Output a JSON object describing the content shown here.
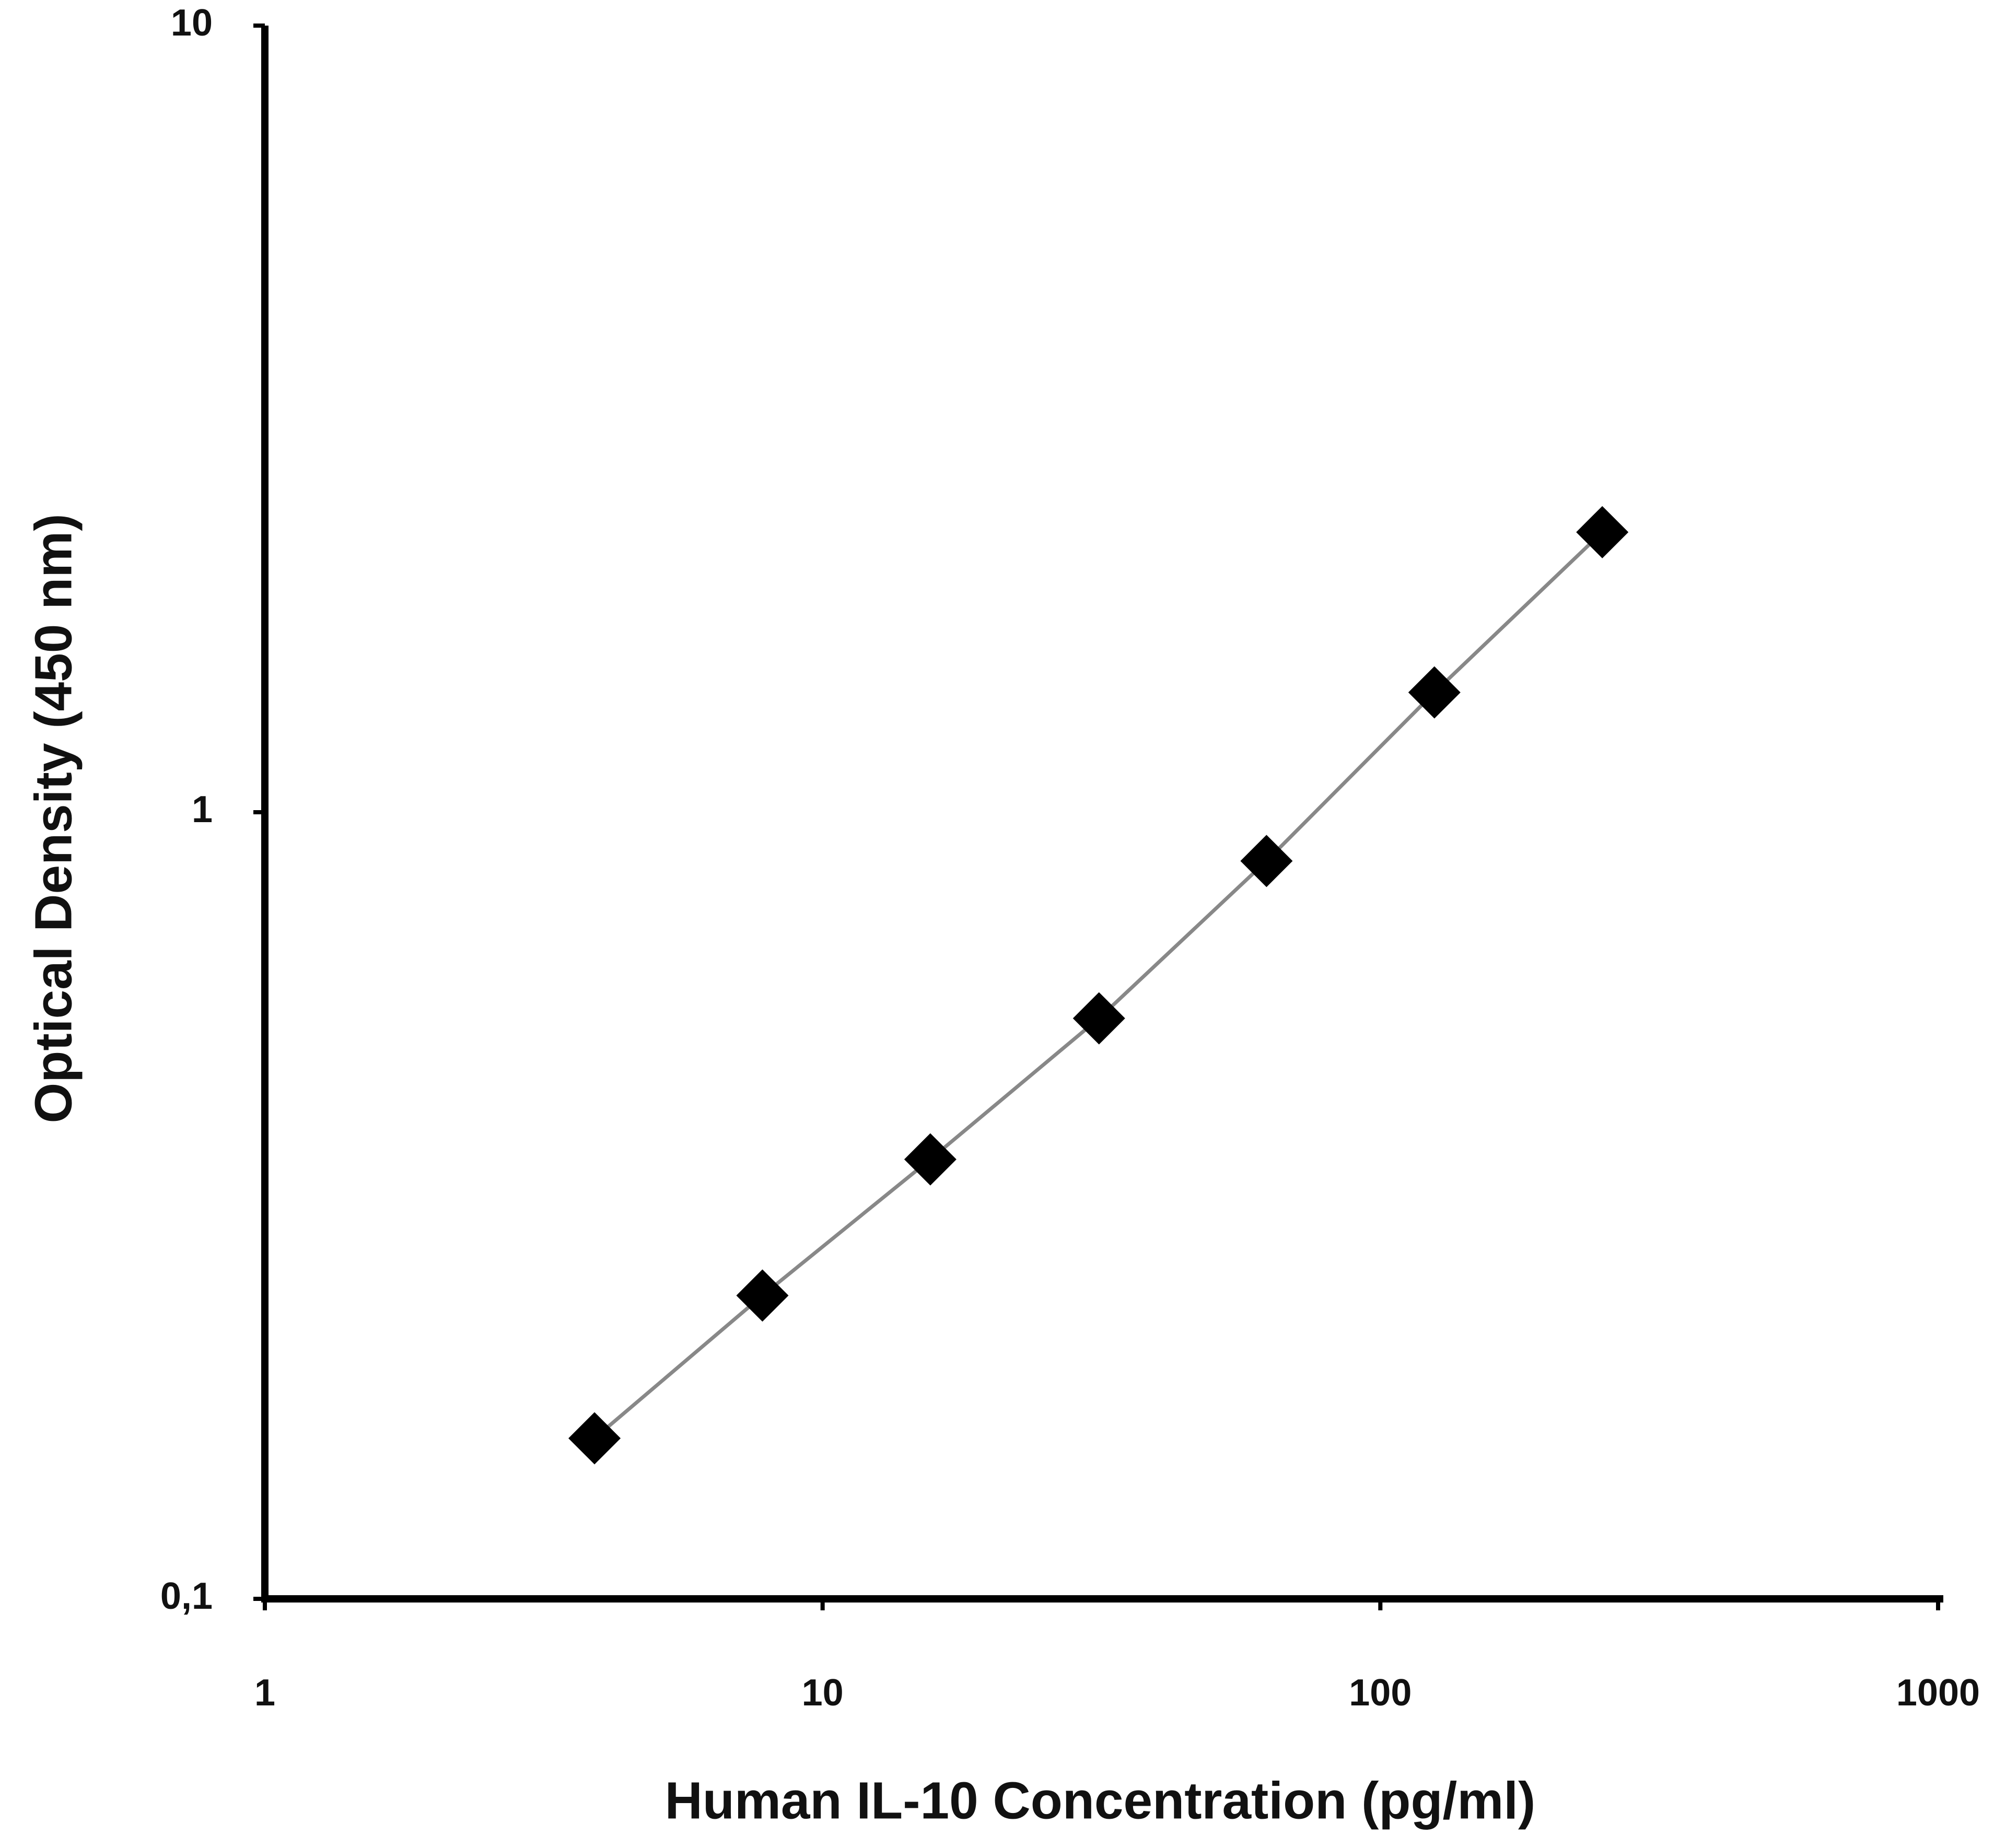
{
  "chart_data": {
    "type": "line",
    "x_label": "Human IL-10 Concentration (pg/ml)",
    "y_label": "Optical Density (450 nm)",
    "x": [
      3.9,
      7.8,
      15.6,
      31.3,
      62.5,
      125,
      250
    ],
    "series": [
      {
        "color": "#000000",
        "values": [
          0.16,
          0.243,
          0.362,
          0.547,
          0.867,
          1.42,
          2.27
        ]
      }
    ],
    "xlim": [
      1,
      1000
    ],
    "xticks": [
      1,
      10,
      100,
      1000
    ],
    "ylim": [
      0.1,
      10
    ],
    "yticks": [
      {
        "value": 0.1,
        "label": "0,1"
      },
      1,
      10
    ],
    "xscale": "log",
    "yscale": "log",
    "grid": false,
    "line_color": "#888888"
  }
}
